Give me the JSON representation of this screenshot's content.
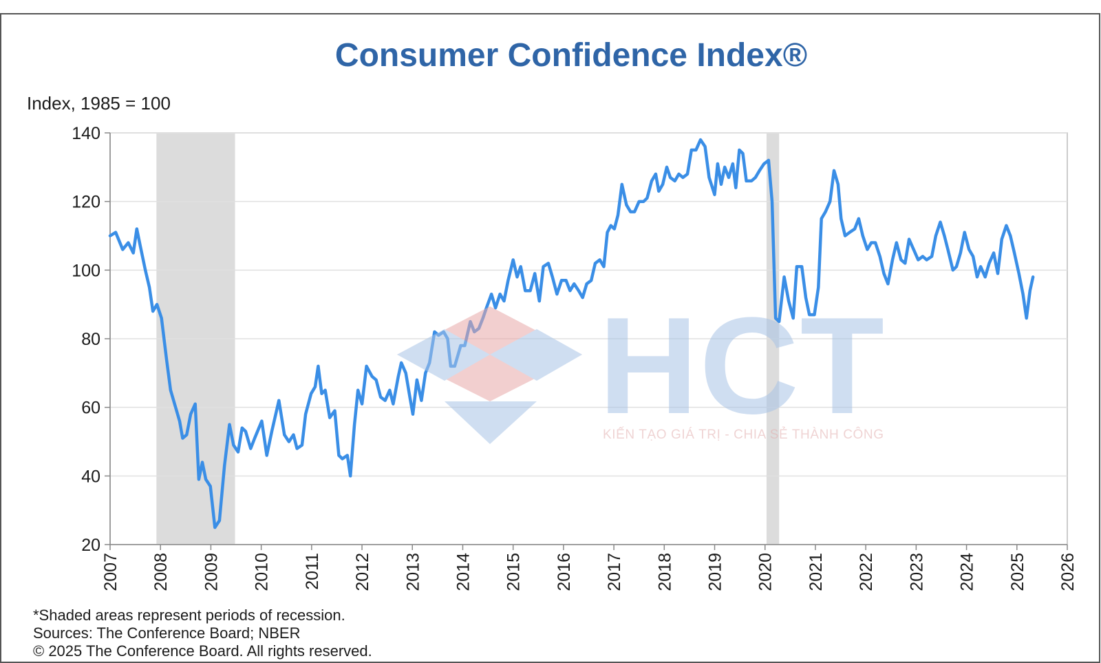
{
  "chart_data": {
    "type": "line",
    "title": "Consumer Confidence Index®",
    "y_label": "Index, 1985 = 100",
    "notes": [
      "*Shaded areas represent periods of recession.",
      "Sources:  The Conference Board;  NBER",
      "© 2025 The Conference Board. All rights reserved."
    ],
    "xlim": [
      2007,
      2026
    ],
    "xticks": [
      2007,
      2008,
      2009,
      2010,
      2011,
      2012,
      2013,
      2014,
      2015,
      2016,
      2017,
      2018,
      2019,
      2020,
      2021,
      2022,
      2023,
      2024,
      2025,
      2026
    ],
    "ylim": [
      20,
      140
    ],
    "yticks": [
      20,
      40,
      60,
      80,
      100,
      120,
      140
    ],
    "grid": true,
    "recessions": [
      [
        2007.92,
        2009.48
      ],
      [
        2020.03,
        2020.28
      ]
    ],
    "x": [
      2007.0,
      2007.11,
      2007.25,
      2007.36,
      2007.46,
      2007.53,
      2007.6,
      2007.7,
      2007.78,
      2007.85,
      2007.93,
      2008.02,
      2008.12,
      2008.2,
      2008.3,
      2008.38,
      2008.44,
      2008.52,
      2008.6,
      2008.69,
      2008.76,
      2008.83,
      2008.9,
      2008.99,
      2009.08,
      2009.17,
      2009.27,
      2009.37,
      2009.45,
      2009.54,
      2009.62,
      2009.69,
      2009.79,
      2009.87,
      2010.01,
      2010.11,
      2010.21,
      2010.35,
      2010.46,
      2010.55,
      2010.64,
      2010.71,
      2010.81,
      2010.88,
      2010.99,
      2011.07,
      2011.13,
      2011.2,
      2011.27,
      2011.36,
      2011.46,
      2011.54,
      2011.61,
      2011.71,
      2011.77,
      2011.85,
      2011.92,
      2012.0,
      2012.09,
      2012.2,
      2012.28,
      2012.37,
      2012.46,
      2012.55,
      2012.62,
      2012.72,
      2012.78,
      2012.87,
      2012.95,
      2013.01,
      2013.09,
      2013.18,
      2013.26,
      2013.34,
      2013.44,
      2013.52,
      2013.62,
      2013.7,
      2013.76,
      2013.84,
      2013.96,
      2014.04,
      2014.15,
      2014.23,
      2014.32,
      2014.4,
      2014.47,
      2014.57,
      2014.65,
      2014.74,
      2014.82,
      2014.9,
      2015.0,
      2015.08,
      2015.15,
      2015.24,
      2015.34,
      2015.43,
      2015.52,
      2015.6,
      2015.7,
      2015.78,
      2015.87,
      2015.96,
      2016.05,
      2016.13,
      2016.21,
      2016.3,
      2016.38,
      2016.46,
      2016.55,
      2016.63,
      2016.72,
      2016.8,
      2016.87,
      2016.94,
      2017.01,
      2017.08,
      2017.16,
      2017.25,
      2017.33,
      2017.41,
      2017.5,
      2017.59,
      2017.66,
      2017.75,
      2017.83,
      2017.89,
      2017.97,
      2018.05,
      2018.12,
      2018.21,
      2018.29,
      2018.37,
      2018.46,
      2018.54,
      2018.63,
      2018.72,
      2018.81,
      2018.89,
      2019.0,
      2019.06,
      2019.13,
      2019.2,
      2019.28,
      2019.36,
      2019.42,
      2019.49,
      2019.56,
      2019.63,
      2019.73,
      2019.81,
      2019.89,
      2019.98,
      2020.07,
      2020.14,
      2020.21,
      2020.28,
      2020.38,
      2020.47,
      2020.56,
      2020.63,
      2020.73,
      2020.81,
      2020.88,
      2020.98,
      2021.06,
      2021.12,
      2021.2,
      2021.29,
      2021.37,
      2021.45,
      2021.51,
      2021.59,
      2021.68,
      2021.78,
      2021.86,
      2021.94,
      2022.03,
      2022.11,
      2022.19,
      2022.28,
      2022.36,
      2022.44,
      2022.53,
      2022.61,
      2022.7,
      2022.78,
      2022.86,
      2022.95,
      2023.04,
      2023.13,
      2023.21,
      2023.31,
      2023.39,
      2023.48,
      2023.56,
      2023.63,
      2023.73,
      2023.8,
      2023.88,
      2023.96,
      2024.05,
      2024.13,
      2024.21,
      2024.28,
      2024.37,
      2024.45,
      2024.54,
      2024.62,
      2024.7,
      2024.79,
      2024.87,
      2024.95,
      2025.04,
      2025.12,
      2025.19,
      2025.26,
      2025.32
    ],
    "series": [
      {
        "color": "#3a8ee6",
        "values": [
          110,
          111,
          106,
          108,
          105,
          112,
          107,
          100,
          95,
          88,
          90,
          86,
          74,
          65,
          60,
          56,
          51,
          52,
          58,
          61,
          39,
          44,
          39,
          37,
          25,
          27,
          43,
          55,
          49,
          47,
          54,
          53,
          48,
          51,
          56,
          46,
          53,
          62,
          52,
          50,
          52,
          48,
          49,
          58,
          64,
          66,
          72,
          64,
          65,
          57,
          59,
          46,
          45,
          46,
          40,
          55,
          65,
          61,
          72,
          69,
          68,
          63,
          62,
          65,
          61,
          69,
          73,
          70,
          63,
          58,
          68,
          62,
          70,
          73,
          82,
          81,
          82,
          80,
          72,
          72,
          78,
          78,
          85,
          82,
          83,
          86,
          89,
          93,
          89,
          93,
          91,
          97,
          103,
          98,
          101,
          94,
          94,
          99,
          91,
          101,
          102,
          98,
          93,
          97,
          97,
          94,
          96,
          94,
          92,
          96,
          97,
          102,
          103,
          101,
          111,
          113,
          112,
          116,
          125,
          119,
          117,
          117,
          120,
          120,
          121,
          126,
          128,
          123,
          125,
          130,
          127,
          126,
          128,
          127,
          128,
          135,
          135,
          138,
          136,
          127,
          122,
          131,
          125,
          130,
          127,
          131,
          124,
          135,
          134,
          126,
          126,
          127,
          129,
          131,
          132,
          120,
          86,
          85,
          98,
          91,
          86,
          101,
          101,
          92,
          87,
          87,
          95,
          115,
          117,
          120,
          129,
          125,
          115,
          110,
          111,
          112,
          115,
          110,
          106,
          108,
          108,
          104,
          99,
          96,
          103,
          108,
          103,
          102,
          109,
          106,
          103,
          104,
          103,
          104,
          110,
          114,
          110,
          106,
          100,
          101,
          105,
          111,
          106,
          104,
          98,
          101,
          98,
          102,
          105,
          99,
          109,
          113,
          110,
          105,
          99,
          93,
          86,
          94,
          98
        ]
      }
    ]
  },
  "watermark": {
    "logo": "HCT",
    "tagline": "KIẾN TẠO GIÁ TRỊ - CHIA SẺ THÀNH CÔNG"
  }
}
